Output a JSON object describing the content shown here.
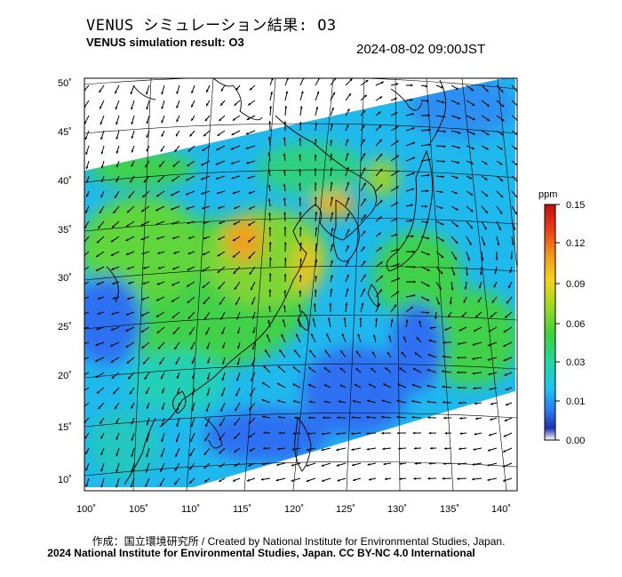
{
  "header": {
    "title_jp": "VENUS シミュレーション結果: O3",
    "title_en": "VENUS simulation result: O3",
    "timestamp": "2024-08-02 09:00JST"
  },
  "map": {
    "lat_ticks": [
      "50˚",
      "45˚",
      "40˚",
      "35˚",
      "30˚",
      "25˚",
      "20˚",
      "15˚",
      "10˚"
    ],
    "lon_ticks": [
      "100˚",
      "105˚",
      "110˚",
      "115˚",
      "120˚",
      "125˚",
      "130˚",
      "135˚",
      "140˚"
    ],
    "field_colors": {
      "low": "#2e6ff2",
      "mid_low": "#1fb9ee",
      "mid": "#22d0b8",
      "mid_high": "#3fd14a",
      "high": "#9ad32a",
      "peak": "#f0a020"
    }
  },
  "colorbar": {
    "unit": "ppm",
    "tick_labels": [
      "0.15",
      "0.12",
      "0.09",
      "0.06",
      "0.03",
      "0.01",
      "0.00"
    ],
    "colors": [
      "#ffffff",
      "#2233aa",
      "#2a73f0",
      "#1fc3f2",
      "#22d6a0",
      "#3ed13c",
      "#a8d722",
      "#f4d21e",
      "#f39a1c",
      "#ea3a16",
      "#c01010"
    ]
  },
  "footer": {
    "credit_line1": "作成：国立環境研究所 / Created by National Institute for Environmental Studies, Japan.",
    "credit_line2": "2024 National Institute for Environmental Studies, Japan. CC BY-NC 4.0 International"
  }
}
